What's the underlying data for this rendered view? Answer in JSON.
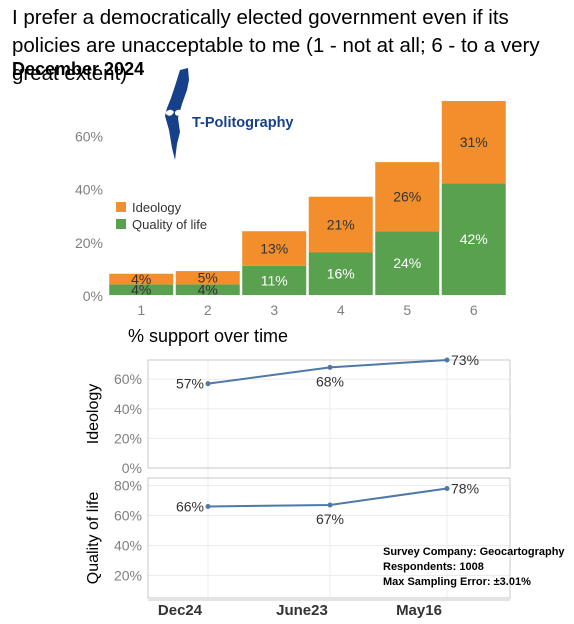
{
  "title": "I prefer a democratically elected government even if its policies are unacceptable to me (1 - not at all; 6 - to a very great extent)",
  "subtitle": "December 2024",
  "logo": {
    "text": "T-Politography",
    "icon": "israel-map-logo-icon",
    "color": "#17408b"
  },
  "section_title": "% support over time",
  "survey": {
    "company": "Survey Company: Geocartography",
    "respondents": "Respondents: 1008",
    "error": "Max Sampling Error: ±3.01%"
  },
  "colors": {
    "ideology": "#f28e2b",
    "quality": "#59a14f",
    "line": "#4e79a7",
    "axis_text": "#7f7f7f",
    "grid": "#ececec"
  },
  "chart_data": [
    {
      "type": "bar",
      "stacked": true,
      "categories": [
        "1",
        "2",
        "3",
        "4",
        "5",
        "6"
      ],
      "series": [
        {
          "name": "Quality of life",
          "values": [
            4,
            4,
            11,
            16,
            24,
            42
          ],
          "labels": [
            "4%",
            "4%",
            "11%",
            "16%",
            "24%",
            "42%"
          ]
        },
        {
          "name": "Ideology",
          "values": [
            4,
            5,
            13,
            21,
            26,
            31
          ],
          "labels": [
            "4%",
            "5%",
            "13%",
            "21%",
            "26%",
            "31%"
          ]
        }
      ],
      "ylim": [
        0,
        73
      ],
      "yticks": [
        0,
        20,
        40,
        60
      ],
      "ytick_labels": [
        "0%",
        "20%",
        "40%",
        "60%"
      ],
      "legend": [
        "Ideology",
        "Quality of life"
      ],
      "legend_position": "left",
      "grid": false
    },
    {
      "type": "line",
      "title": "% support over time",
      "x": [
        "Dec24",
        "June23",
        "May16"
      ],
      "panels": [
        {
          "name": "Ideology",
          "values": [
            57,
            68,
            73
          ],
          "labels": [
            "57%",
            "68%",
            "73%"
          ],
          "ylim": [
            0,
            73
          ],
          "yticks": [
            0,
            20,
            40,
            60
          ],
          "ytick_labels": [
            "0%",
            "20%",
            "40%",
            "60%"
          ]
        },
        {
          "name": "Quality of life",
          "values": [
            66,
            67,
            78
          ],
          "labels": [
            "66%",
            "67%",
            "78%"
          ],
          "ylim": [
            5,
            85
          ],
          "yticks": [
            20,
            40,
            60,
            80
          ],
          "ytick_labels": [
            "20%",
            "40%",
            "60%",
            "80%"
          ]
        }
      ],
      "grid": true
    }
  ]
}
